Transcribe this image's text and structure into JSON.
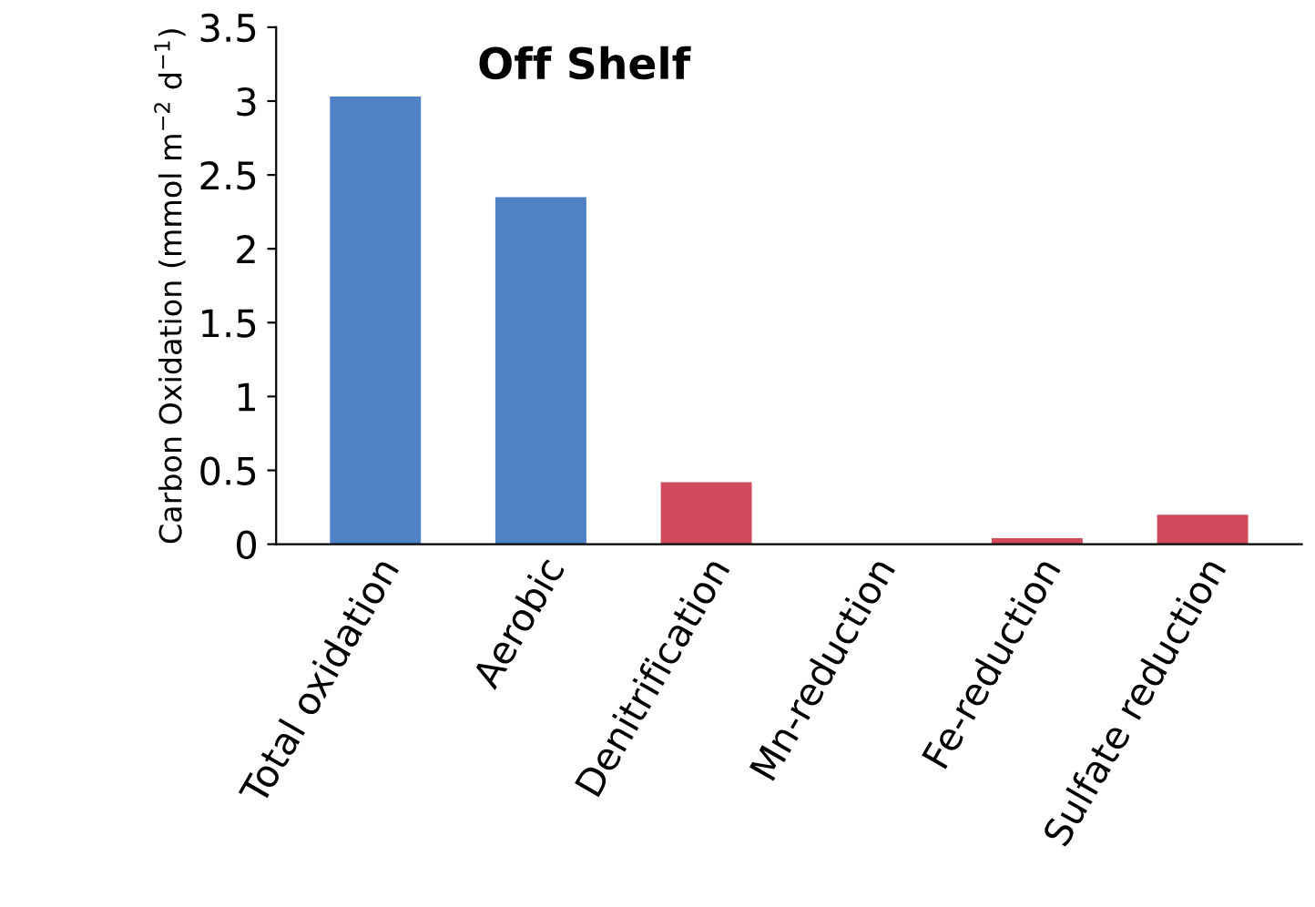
{
  "chart_data": {
    "type": "bar",
    "title": "Off Shelf",
    "ylabel": "Carbon Oxidation (mmol m$^{−2}$ d$^{−1}$)",
    "categories": [
      "Total oxidation",
      "Aerobic",
      "Denitrification",
      "Mn-reduction",
      "Fe-reduction",
      "Sulfate reduction"
    ],
    "values": [
      3.03,
      2.35,
      0.42,
      0.0,
      0.04,
      0.2
    ],
    "colors": [
      "#4f81c7",
      "#4f81c7",
      "#d04a5c",
      "#d04a5c",
      "#d04a5c",
      "#d04a5c"
    ],
    "ylim": [
      0,
      3.5
    ],
    "yticks": [
      0,
      0.5,
      1,
      1.5,
      2,
      2.5,
      3,
      3.5
    ],
    "grid": false,
    "legend": false
  }
}
